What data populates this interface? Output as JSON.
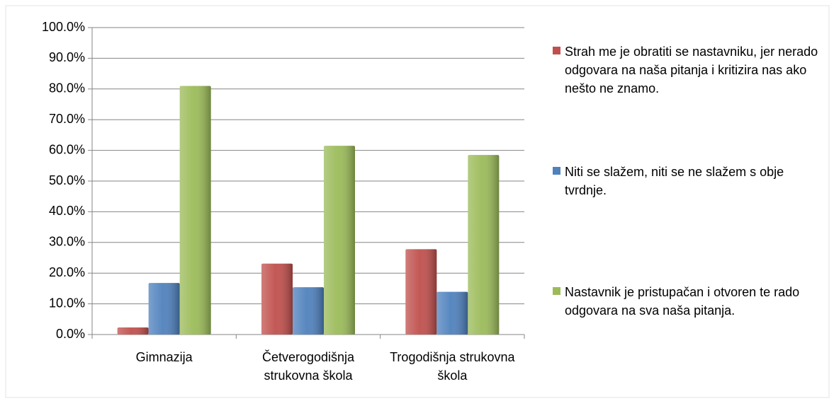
{
  "chart_data": {
    "type": "bar",
    "categories": [
      "Gimnazija",
      "Četverogodišnja strukovna škola",
      "Trogodišnja strukovna škola"
    ],
    "series": [
      {
        "name": "Strah me je obratiti se nastavniku, jer nerado odgovara na naša pitanja i kritizira nas ako nešto ne znamo.",
        "color": "#c0504d",
        "values": [
          2.3,
          23.1,
          27.8
        ]
      },
      {
        "name": "Niti se slažem, niti se ne slažem s obje tvrdnje.",
        "color": "#4f81bd",
        "values": [
          16.8,
          15.4,
          13.9
        ]
      },
      {
        "name": "Nastavnik je pristupačan i otvoren te rado odgovara na sva naša pitanja.",
        "color": "#9bbb59",
        "values": [
          81.0,
          61.5,
          58.5
        ]
      }
    ],
    "ylim": [
      0,
      100
    ],
    "yticks": [
      {
        "value": 0,
        "label": "0.0%"
      },
      {
        "value": 10,
        "label": "10.0%"
      },
      {
        "value": 20,
        "label": "20.0%"
      },
      {
        "value": 30,
        "label": "30.0%"
      },
      {
        "value": 40,
        "label": "40.0%"
      },
      {
        "value": 50,
        "label": "50.0%"
      },
      {
        "value": 60,
        "label": "60.0%"
      },
      {
        "value": 70,
        "label": "70.0%"
      },
      {
        "value": 80,
        "label": "80.0%"
      },
      {
        "value": 90,
        "label": "90.0%"
      },
      {
        "value": 100,
        "label": "100.0%"
      }
    ],
    "grid": true,
    "legend": "right"
  }
}
